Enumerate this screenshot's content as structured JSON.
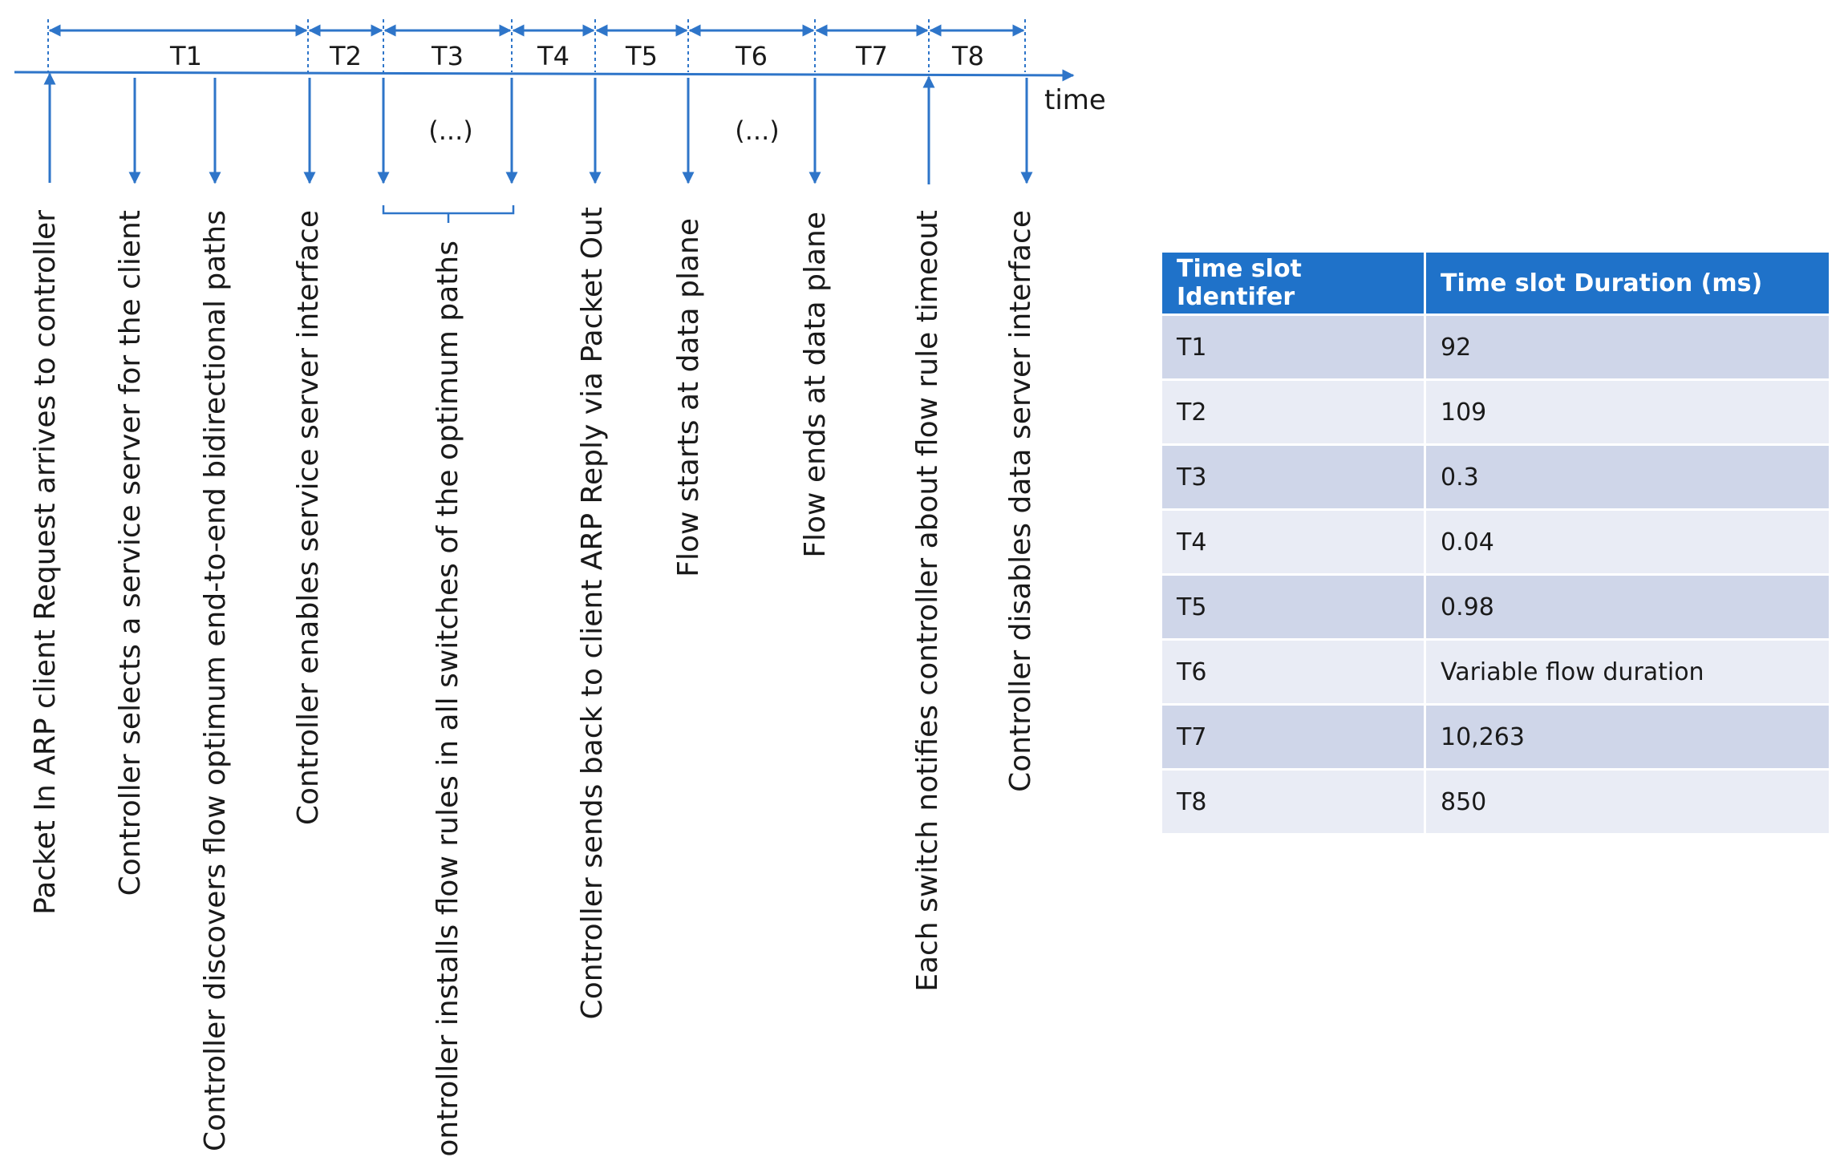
{
  "timeline": {
    "axis_label": "time",
    "intervals": [
      "T1",
      "T2",
      "T3",
      "T4",
      "T5",
      "T6",
      "T7",
      "T8"
    ],
    "ellipsis": "(...)",
    "accent_color": "#2e75c9"
  },
  "events": [
    "Packet In ARP client Request arrives to controller",
    "Controller selects a service server for the client",
    "Controller discovers flow optimum end-to-end bidirectional paths",
    "Controller enables service server interface",
    "Controller installs flow rules in all switches of the optimum paths",
    "Controller sends back to client  ARP Reply via Packet Out",
    "Flow starts at data plane",
    "Flow ends at data plane",
    "Each switch notifies controller about flow rule timeout",
    "Controller disables data server interface"
  ],
  "table": {
    "headers": [
      "Time slot Identifer",
      "Time slot Duration (ms)"
    ],
    "rows": [
      [
        "T1",
        "92"
      ],
      [
        "T2",
        "109"
      ],
      [
        "T3",
        "0.3"
      ],
      [
        "T4",
        "0.04"
      ],
      [
        "T5",
        "0.98"
      ],
      [
        "T6",
        "Variable flow duration"
      ],
      [
        "T7",
        "10,263"
      ],
      [
        "T8",
        "850"
      ]
    ],
    "header_color": "#1f72c9",
    "row_color_odd": "#cfd6e9",
    "row_color_even": "#e9ecf5"
  }
}
